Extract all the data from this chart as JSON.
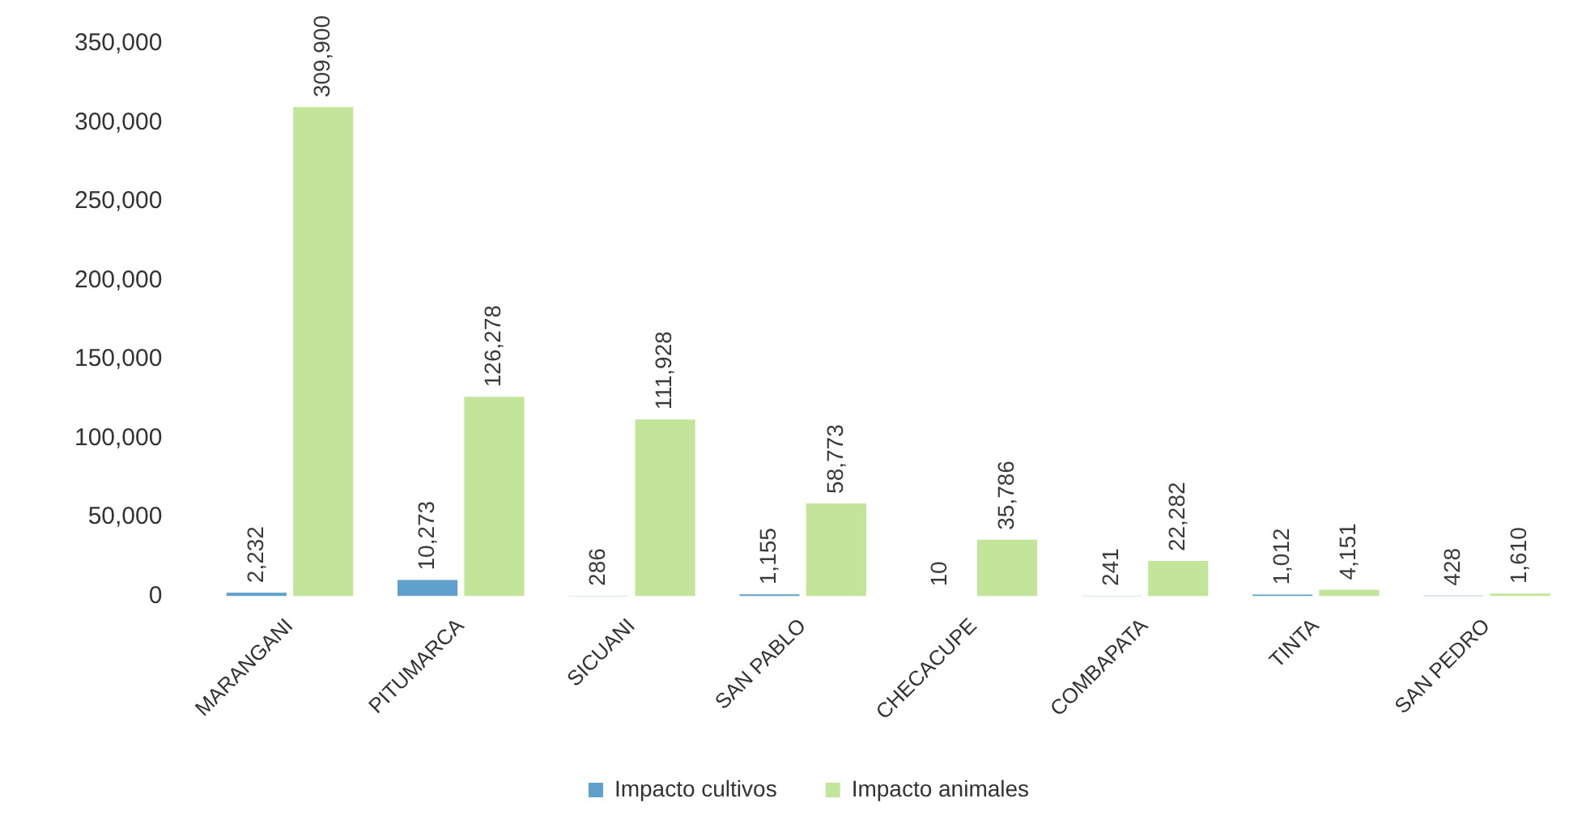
{
  "chart_data": {
    "type": "bar",
    "categories": [
      "MARANGANI",
      "PITUMARCA",
      "SICUANI",
      "SAN PABLO",
      "CHECACUPE",
      "COMBAPATA",
      "TINTA",
      "SAN PEDRO"
    ],
    "series": [
      {
        "name": "Impacto cultivos",
        "color": "#5fa0cc",
        "values": [
          2232,
          10273,
          286,
          1155,
          10,
          241,
          1012,
          428
        ],
        "value_labels": [
          "2,232",
          "10,273",
          "286",
          "1,155",
          "10",
          "241",
          "1,012",
          "428"
        ]
      },
      {
        "name": "Impacto animales",
        "color": "#c3e59a",
        "values": [
          309900,
          126278,
          111928,
          58773,
          35786,
          22282,
          4151,
          1610
        ],
        "value_labels": [
          "309,900",
          "126,278",
          "111,928",
          "58,773",
          "35,786",
          "22,282",
          "4,151",
          "1,610"
        ]
      }
    ],
    "ylim": [
      0,
      350000
    ],
    "yticks": [
      0,
      {
        "value": 50000,
        "label": "50,000"
      },
      {
        "value": 100000,
        "label": "100,000"
      },
      {
        "value": 150000,
        "label": "150,000"
      },
      {
        "value": 200000,
        "label": "200,000"
      },
      {
        "value": 250000,
        "label": "250,000"
      },
      {
        "value": 300000,
        "label": "300,000"
      },
      {
        "value": 350000,
        "label": "350,000"
      }
    ],
    "grid": false,
    "legend": "bottom"
  }
}
